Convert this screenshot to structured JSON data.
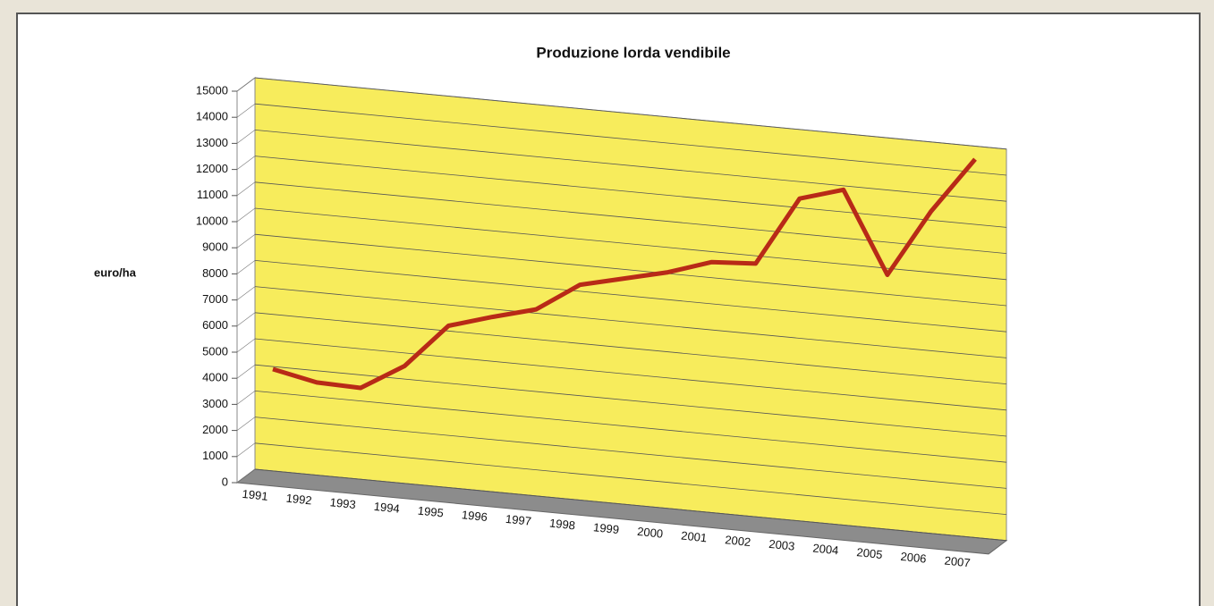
{
  "chart_data": {
    "type": "line",
    "title": "Produzione lorda vendibile",
    "y_label": "euro/ha",
    "categories": [
      "1991",
      "1992",
      "1993",
      "1994",
      "1995",
      "1996",
      "1997",
      "1998",
      "1999",
      "2000",
      "2001",
      "2002",
      "2003",
      "2004",
      "2005",
      "2006",
      "2007"
    ],
    "values": [
      3900,
      3550,
      3500,
      4500,
      6200,
      6700,
      7150,
      8250,
      8650,
      9050,
      9600,
      9700,
      12350,
      12850,
      9750,
      12350,
      14500
    ],
    "color": "#b82a17",
    "ylim": [
      0,
      15000
    ],
    "yticks": [
      0,
      1000,
      2000,
      3000,
      4000,
      5000,
      6000,
      7000,
      8000,
      9000,
      10000,
      11000,
      12000,
      13000,
      14000,
      15000
    ],
    "grid": true
  }
}
